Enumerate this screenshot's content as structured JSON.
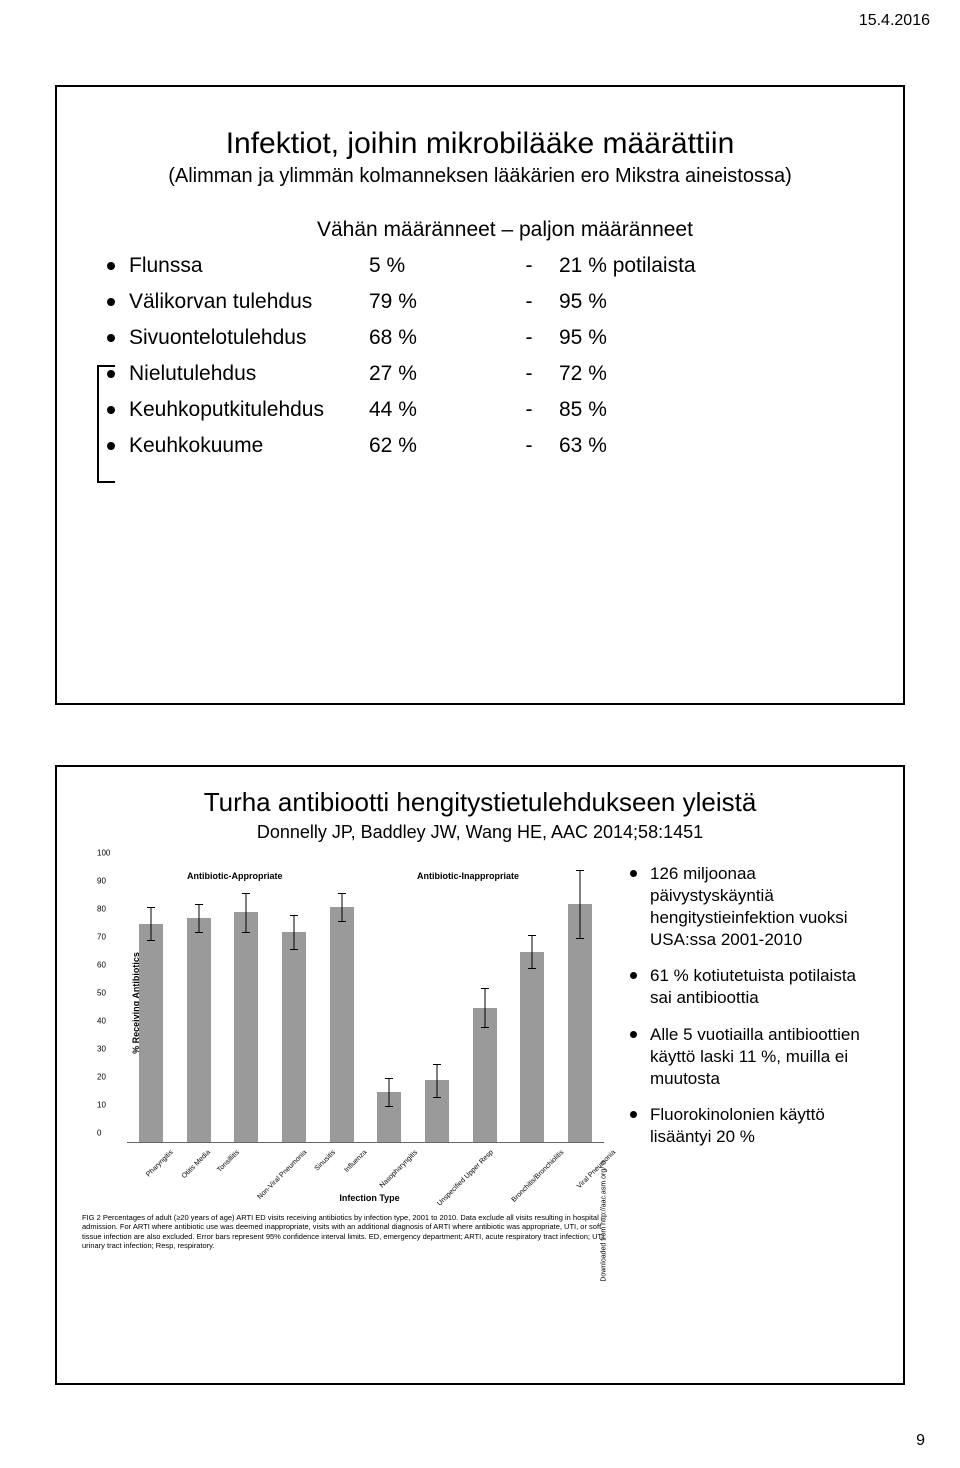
{
  "page": {
    "date": "15.4.2016",
    "number": "9"
  },
  "slide1": {
    "title": "Infektiot, joihin mikrobilääke määrättiin",
    "subtitle": "(Alimman ja ylimmän kolmanneksen lääkärien ero Mikstra aineistossa)",
    "col_header": "Vähän määränneet – paljon määränneet",
    "rows": [
      {
        "label": "Flunssa",
        "low": "5 %",
        "dash": "-",
        "high": "21 % potilaista"
      },
      {
        "label": "Välikorvan tulehdus",
        "low": "79 %",
        "dash": "-",
        "high": "95 %"
      },
      {
        "label": "Sivuontelotulehdus",
        "low": "68 %",
        "dash": "-",
        "high": "95 %"
      },
      {
        "label": "Nielutulehdus",
        "low": "27 %",
        "dash": "-",
        "high": "72 %"
      },
      {
        "label": "Keuhkoputkitulehdus",
        "low": "44 %",
        "dash": "-",
        "high": "85 %"
      },
      {
        "label": "Keuhkokuume",
        "low": "62 %",
        "dash": "-",
        "high": "63 %"
      }
    ]
  },
  "slide2": {
    "title": "Turha antibiootti hengitystietulehdukseen yleistä",
    "subtitle": "Donnelly JP, Baddley JW, Wang HE, AAC 2014;58:1451",
    "bullets": [
      "126 miljoonaa päivystyskäyntiä hengitystieinfektion vuoksi USA:ssa 2001-2010",
      "61 % kotiutetuista potilaista sai antibioottia",
      "Alle 5 vuotiailla antibioottien käyttö laski 11 %, muilla ei muutosta",
      "Fluorokinolonien käyttö lisääntyi 20 %"
    ],
    "chart": {
      "type": "bar",
      "yaxis_label": "% Receiving Antibiotics",
      "xaxis_label": "Infection Type",
      "group_labels": [
        "Antibiotic-Appropriate",
        "Antibiotic-Inappropriate"
      ],
      "ylim": [
        0,
        100
      ],
      "ytick_step": 10,
      "bar_color": "#9a9a9a",
      "background_color": "#ffffff",
      "categories": [
        "Pharyngitis",
        "Otitis Media",
        "Tonsillitis",
        "Non-Viral Pneumonia",
        "Sinusitis",
        "Influenza",
        "Nasopharyngitis",
        "Unspecified Upper Resp",
        "Bronchitis/Bronchiolitis",
        "Viral Pneumonia"
      ],
      "values": [
        78,
        80,
        82,
        75,
        84,
        18,
        22,
        48,
        68,
        85
      ],
      "error": [
        6,
        5,
        7,
        6,
        5,
        5,
        6,
        7,
        6,
        12
      ],
      "caption": "FIG 2  Percentages of adult (≥20 years of age) ARTI ED visits receiving antibiotics by infection type, 2001 to 2010. Data exclude all visits resulting in hospital admission. For ARTI where antibiotic use was deemed inappropriate, visits with an additional diagnosis of ARTI where antibiotic was appropriate, UTI, or soft tissue infection are also excluded. Error bars represent 95% confidence interval limits. ED, emergency department; ARTI, acute respiratory tract infection; UTI, urinary tract infection; Resp, respiratory.",
      "download_note": "Downloaded from http://aac.asm.org/ o"
    }
  }
}
